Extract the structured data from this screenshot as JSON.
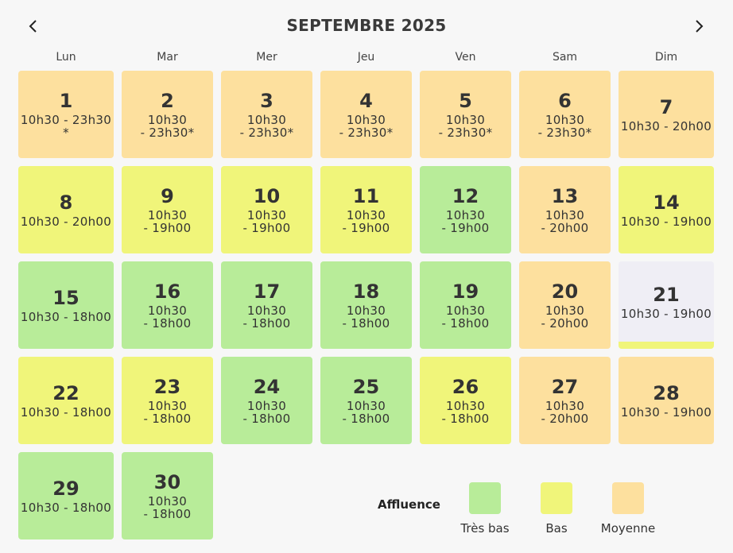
{
  "header": {
    "title": "SEPTEMBRE 2025",
    "prev_icon": "chevron-left-icon",
    "next_icon": "chevron-right-icon"
  },
  "weekdays": [
    "Lun",
    "Mar",
    "Mer",
    "Jeu",
    "Ven",
    "Sam",
    "Dim"
  ],
  "colors": {
    "tres_bas": "#b8ec99",
    "bas": "#f0f57a",
    "moyenne": "#fde09e",
    "today_bg": "#efeef5"
  },
  "days": [
    {
      "day": "1",
      "hours": "10h30 - 23h30\n*",
      "level": "moyenne"
    },
    {
      "day": "2",
      "hours": "10h30\n- 23h30*",
      "level": "moyenne"
    },
    {
      "day": "3",
      "hours": "10h30\n- 23h30*",
      "level": "moyenne"
    },
    {
      "day": "4",
      "hours": "10h30\n- 23h30*",
      "level": "moyenne"
    },
    {
      "day": "5",
      "hours": "10h30\n- 23h30*",
      "level": "moyenne"
    },
    {
      "day": "6",
      "hours": "10h30\n- 23h30*",
      "level": "moyenne"
    },
    {
      "day": "7",
      "hours": "10h30 - 20h00",
      "level": "moyenne"
    },
    {
      "day": "8",
      "hours": "10h30 - 20h00",
      "level": "bas"
    },
    {
      "day": "9",
      "hours": "10h30\n- 19h00",
      "level": "bas"
    },
    {
      "day": "10",
      "hours": "10h30\n- 19h00",
      "level": "bas"
    },
    {
      "day": "11",
      "hours": "10h30\n- 19h00",
      "level": "bas"
    },
    {
      "day": "12",
      "hours": "10h30\n- 19h00",
      "level": "tres_bas"
    },
    {
      "day": "13",
      "hours": "10h30\n- 20h00",
      "level": "moyenne"
    },
    {
      "day": "14",
      "hours": "10h30 - 19h00",
      "level": "bas"
    },
    {
      "day": "15",
      "hours": "10h30 - 18h00",
      "level": "tres_bas"
    },
    {
      "day": "16",
      "hours": "10h30\n- 18h00",
      "level": "tres_bas"
    },
    {
      "day": "17",
      "hours": "10h30\n- 18h00",
      "level": "tres_bas"
    },
    {
      "day": "18",
      "hours": "10h30\n- 18h00",
      "level": "tres_bas"
    },
    {
      "day": "19",
      "hours": "10h30\n- 18h00",
      "level": "tres_bas"
    },
    {
      "day": "20",
      "hours": "10h30\n- 20h00",
      "level": "moyenne"
    },
    {
      "day": "21",
      "hours": "10h30 - 19h00",
      "level": "bas",
      "today": true
    },
    {
      "day": "22",
      "hours": "10h30 - 18h00",
      "level": "bas"
    },
    {
      "day": "23",
      "hours": "10h30\n- 18h00",
      "level": "bas"
    },
    {
      "day": "24",
      "hours": "10h30\n- 18h00",
      "level": "tres_bas"
    },
    {
      "day": "25",
      "hours": "10h30\n- 18h00",
      "level": "tres_bas"
    },
    {
      "day": "26",
      "hours": "10h30\n- 18h00",
      "level": "bas"
    },
    {
      "day": "27",
      "hours": "10h30\n- 20h00",
      "level": "moyenne"
    },
    {
      "day": "28",
      "hours": "10h30 - 19h00",
      "level": "moyenne"
    },
    {
      "day": "29",
      "hours": "10h30 - 18h00",
      "level": "tres_bas"
    },
    {
      "day": "30",
      "hours": "10h30\n- 18h00",
      "level": "tres_bas"
    }
  ],
  "legend": {
    "title": "Affluence",
    "items": [
      {
        "label": "Très bas",
        "level": "tres_bas"
      },
      {
        "label": "Bas",
        "level": "bas"
      },
      {
        "label": "Moyenne",
        "level": "moyenne"
      }
    ]
  }
}
